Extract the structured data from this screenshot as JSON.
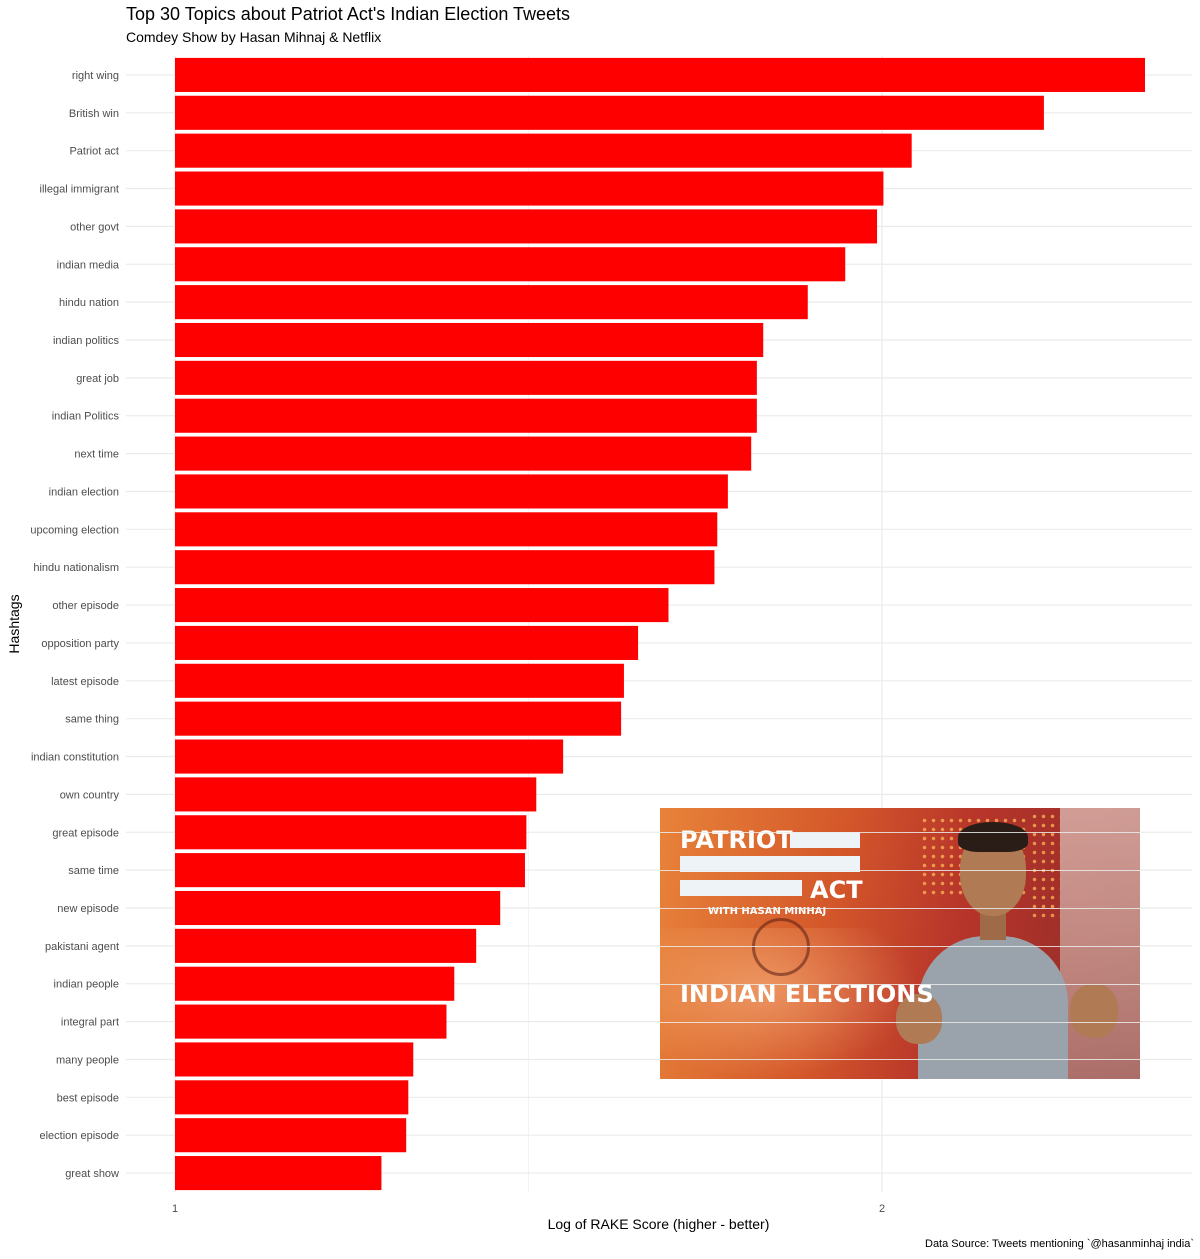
{
  "chart_data": {
    "type": "bar",
    "orientation": "horizontal",
    "title": "Top 30 Topics about Patriot Act's Indian Election Tweets",
    "subtitle": "Comdey Show by Hasan Mihnaj & Netflix",
    "caption": "Data Source: Tweets mentioning `@hasanminhaj india`",
    "xlabel": "Log of RAKE Score (higher - better)",
    "ylabel": "Hashtags",
    "xlim": [
      1.0,
      2.45
    ],
    "x_ticks": [
      1,
      2
    ],
    "x_tick_labels": [
      "1",
      "2"
    ],
    "grid": true,
    "bar_color": "#ff0000",
    "categories": [
      "right wing",
      "British win",
      "Patriot act",
      "illegal immigrant",
      "other govt",
      "indian media",
      "hindu nation",
      "indian politics",
      "great job",
      "indian Politics",
      "next time",
      "indian election",
      "upcoming election",
      "hindu nationalism",
      "other episode",
      "opposition party",
      "latest episode",
      "same thing",
      "indian constitution",
      "own country",
      "great episode",
      "same time",
      "new episode",
      "pakistani agent",
      "indian people",
      "integral part",
      "many people",
      "best episode",
      "election episode",
      "great show"
    ],
    "values": [
      2.372,
      2.229,
      2.042,
      2.002,
      1.993,
      1.948,
      1.895,
      1.832,
      1.823,
      1.823,
      1.815,
      1.782,
      1.767,
      1.763,
      1.698,
      1.655,
      1.635,
      1.631,
      1.549,
      1.511,
      1.497,
      1.495,
      1.46,
      1.426,
      1.395,
      1.384,
      1.337,
      1.33,
      1.327,
      1.292
    ]
  },
  "inset_image": {
    "logo_top": "PATRIOT",
    "logo_bottom": "ACT",
    "logo_sub": "WITH HASAN MINHAJ",
    "heading": "INDIAN ELECTIONS"
  }
}
